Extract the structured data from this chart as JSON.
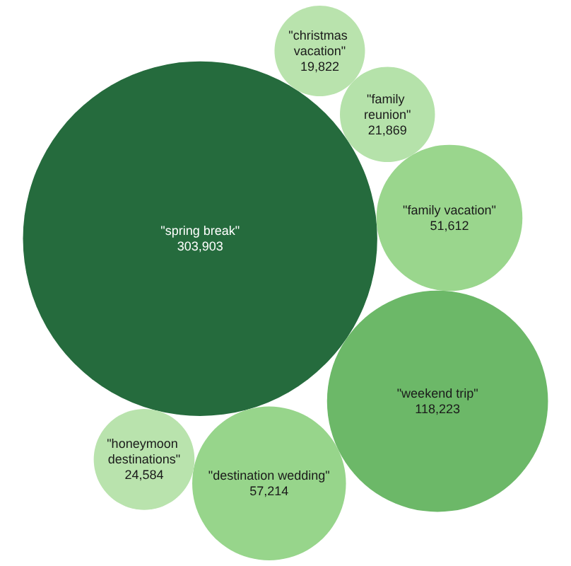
{
  "chart_data": {
    "type": "other",
    "categories": [
      "\"spring break\"",
      "\"weekend trip\"",
      "\"destination wedding\"",
      "\"family vacation\"",
      "\"family reunion\"",
      "\"honeymoon destinations\"",
      "\"christmas vacation\""
    ],
    "values": [
      303903,
      118223,
      57214,
      51612,
      21869,
      24584,
      19822
    ],
    "colors": [
      "#256b3d",
      "#6cb868",
      "#97d58b",
      "#9ad68d",
      "#b5e2aa",
      "#b9e3ad",
      "#b9e3ad"
    ],
    "value_labels": [
      "303,903",
      "118,223",
      "57,214",
      "51,612",
      "21,869",
      "24,584",
      "19,822"
    ]
  }
}
